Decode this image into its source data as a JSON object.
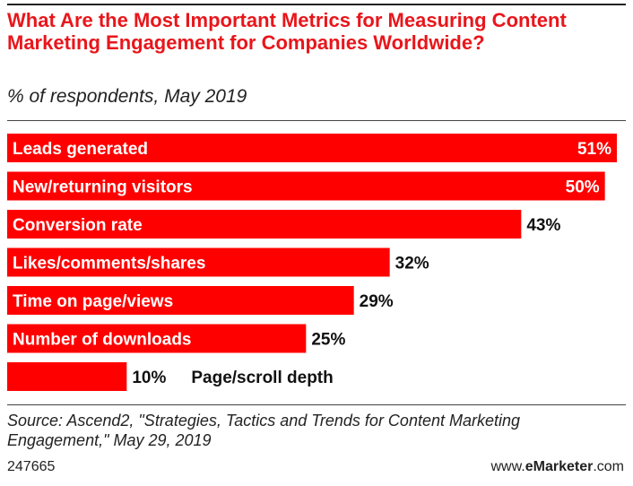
{
  "header": {
    "title": "What Are the Most Important Metrics for Measuring Content Marketing Engagement for Companies Worldwide?",
    "subtitle": "% of respondents, May 2019"
  },
  "chart_data": {
    "type": "bar",
    "orientation": "horizontal",
    "title": "What Are the Most Important Metrics for Measuring Content Marketing Engagement for Companies Worldwide?",
    "subtitle": "% of respondents, May 2019",
    "categories": [
      "Leads generated",
      "New/returning visitors",
      "Conversion rate",
      "Likes/comments/shares",
      "Time on page/views",
      "Number of downloads",
      "Page/scroll depth"
    ],
    "values": [
      51,
      50,
      43,
      32,
      29,
      25,
      10
    ],
    "value_labels": [
      "51%",
      "50%",
      "43%",
      "32%",
      "29%",
      "25%",
      "10%"
    ],
    "unit": "%",
    "xlim": [
      0,
      51
    ],
    "bar_color": "#ff0000"
  },
  "footer": {
    "source": "Source: Ascend2, \"Strategies, Tactics and Trends for Content Marketing Engagement,\" May 29, 2019",
    "chart_id": "247665",
    "brand_prefix": "www.",
    "brand_name": "eMarketer",
    "brand_suffix": ".com"
  }
}
